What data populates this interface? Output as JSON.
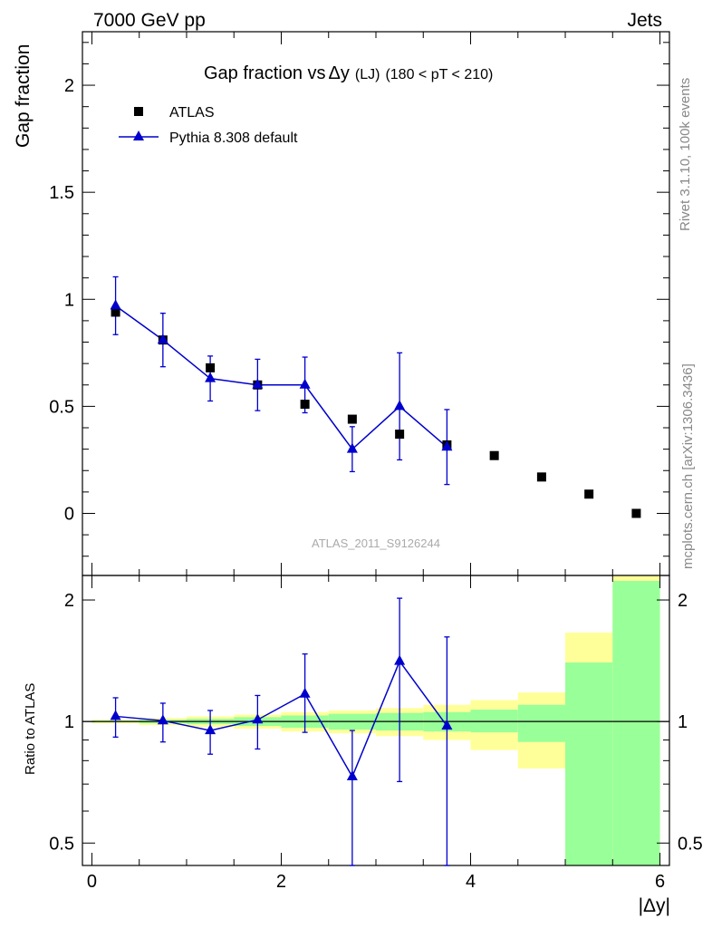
{
  "header": {
    "left": "7000 GeV pp",
    "right": "Jets"
  },
  "side_labels": {
    "rivet": "Rivet 3.1.10,  100k events",
    "mcplots": "mcplots.cern.ch [arXiv:1306.3436]"
  },
  "analysis_id": "ATLAS_2011_S9126244",
  "colors": {
    "data": "#000000",
    "mc": "#0000cc",
    "band_inner": "#99ff99",
    "band_outer": "#ffff99"
  },
  "chart_data": [
    {
      "type": "scatter",
      "title": "Gap fraction vsΔy (LJ) (180 < pT < 210)",
      "title_parts": {
        "main": "Gap fraction vs",
        "delta": "Δy",
        "small": "(LJ)",
        "range": "(180 < pT < 210)"
      },
      "ylabel": "Gap fraction",
      "xlabel": "|Δy|",
      "xlim": [
        -0.1,
        6.1
      ],
      "ylim": [
        -0.29,
        2.25
      ],
      "ytick_labels": [
        "0",
        "0.5",
        "1",
        "1.5",
        "2"
      ],
      "yticks": [
        0,
        0.5,
        1,
        1.5,
        2
      ],
      "legend_position": "top-left",
      "series": [
        {
          "name": "ATLAS",
          "marker": "square",
          "x": [
            0.25,
            0.75,
            1.25,
            1.75,
            2.25,
            2.75,
            3.25,
            3.75,
            4.25,
            4.75,
            5.25,
            5.75
          ],
          "y": [
            0.94,
            0.81,
            0.68,
            0.6,
            0.51,
            0.44,
            0.37,
            0.32,
            0.27,
            0.17,
            0.09,
            0.0
          ]
        },
        {
          "name": "Pythia 8.308 default",
          "marker": "triangle",
          "x": [
            0.25,
            0.75,
            1.25,
            1.75,
            2.25,
            2.75,
            3.25,
            3.75
          ],
          "y": [
            0.97,
            0.81,
            0.63,
            0.6,
            0.6,
            0.3,
            0.5,
            0.31
          ],
          "yerr": [
            0.135,
            0.125,
            0.105,
            0.12,
            0.13,
            0.105,
            0.25,
            0.175
          ]
        }
      ]
    },
    {
      "type": "line",
      "ylabel": "Ratio to ATLAS",
      "xlabel": "|Δy|",
      "xlim": [
        -0.1,
        6.1
      ],
      "ylim": [
        0.44,
        2.3
      ],
      "ytick_labels": [
        "0.5",
        "1",
        "2"
      ],
      "yticks": [
        0.5,
        1,
        2
      ],
      "xticks": [
        0,
        2,
        4,
        6
      ],
      "xtick_labels": [
        "0",
        "2",
        "4",
        "6"
      ],
      "log_scale_y": true,
      "reference_line": 1,
      "bands": {
        "x_edges": [
          0,
          0.5,
          1,
          1.5,
          2,
          2.5,
          3,
          3.5,
          4,
          4.5,
          5,
          5.5
        ],
        "inner_low": [
          0.995,
          0.99,
          0.985,
          0.975,
          0.965,
          0.955,
          0.95,
          0.945,
          0.94,
          0.89,
          0.31,
          0.31
        ],
        "inner_high": [
          1.005,
          1.01,
          1.015,
          1.025,
          1.035,
          1.045,
          1.05,
          1.055,
          1.07,
          1.1,
          1.4,
          2.23
        ],
        "outer_low": [
          0.99,
          0.98,
          0.97,
          0.96,
          0.945,
          0.935,
          0.92,
          0.9,
          0.85,
          0.765,
          0.43,
          0.31
        ],
        "outer_high": [
          1.01,
          1.02,
          1.03,
          1.04,
          1.055,
          1.065,
          1.08,
          1.1,
          1.13,
          1.18,
          1.66,
          2.35
        ]
      },
      "series": [
        {
          "name": "Pythia 8.308 default",
          "x": [
            0.25,
            0.75,
            1.25,
            1.75,
            2.25,
            2.75,
            3.25,
            3.75
          ],
          "y": [
            1.03,
            1.005,
            0.95,
            1.01,
            1.17,
            0.73,
            1.41,
            0.975
          ],
          "yerr_low": [
            0.115,
            0.115,
            0.12,
            0.155,
            0.23,
            0.32,
            0.7,
            0.615
          ],
          "yerr_high": [
            0.115,
            0.105,
            0.115,
            0.15,
            0.3,
            0.22,
            0.61,
            0.645
          ]
        }
      ]
    }
  ]
}
